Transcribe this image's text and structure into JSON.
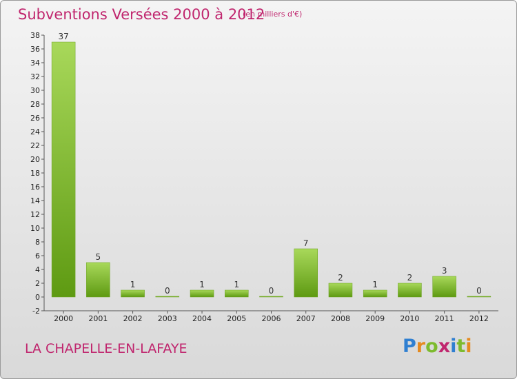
{
  "header": {
    "title": "Subventions Versées 2000 à 2012",
    "unit": "(en milliers d'€)"
  },
  "footer": {
    "town": "LA CHAPELLE-EN-LAFAYE",
    "logo": [
      "P",
      "r",
      "o",
      "x",
      "i",
      "t",
      "i"
    ]
  },
  "colors": {
    "title": "#c0266e",
    "bar_light": "#a8d85a",
    "bar_dark": "#5e9a12",
    "logo": [
      "#2f7fd1",
      "#e58a1f",
      "#7dbb2e",
      "#c0266e",
      "#2f7fd1",
      "#7dbb2e",
      "#e58a1f"
    ]
  },
  "chart_data": {
    "type": "bar",
    "categories": [
      "2000",
      "2001",
      "2002",
      "2003",
      "2004",
      "2005",
      "2006",
      "2007",
      "2008",
      "2009",
      "2010",
      "2011",
      "2012"
    ],
    "values": [
      37,
      5,
      1,
      0,
      1,
      1,
      0,
      7,
      2,
      1,
      2,
      3,
      0
    ],
    "title": "Subventions Versées 2000 à 2012",
    "ylim": [
      -2,
      38
    ],
    "yticks": [
      -2,
      0,
      2,
      4,
      6,
      8,
      10,
      12,
      14,
      16,
      18,
      20,
      22,
      24,
      26,
      28,
      30,
      32,
      34,
      36,
      38
    ],
    "grid": false,
    "legend": "none"
  }
}
